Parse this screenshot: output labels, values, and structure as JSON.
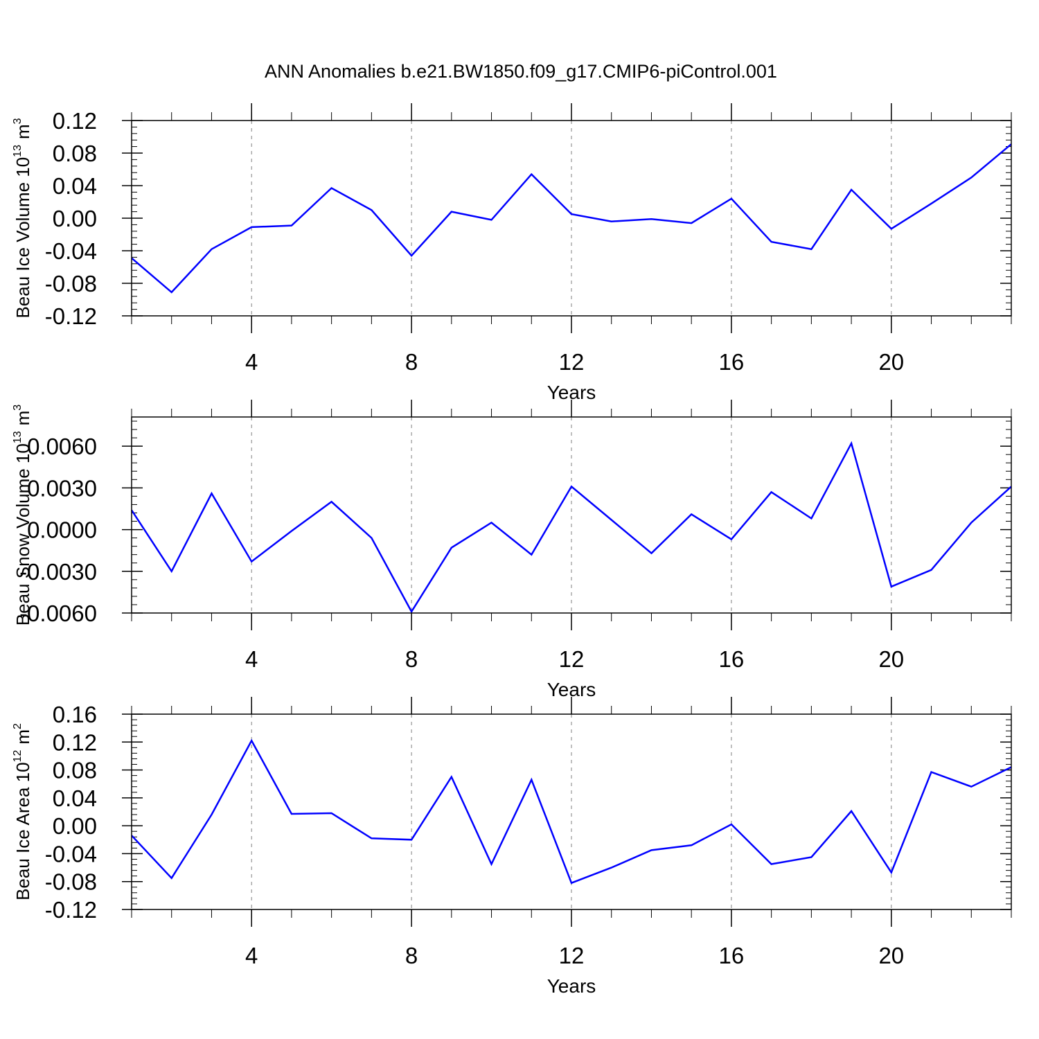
{
  "title": "ANN Anomalies b.e21.BW1850.f09_g17.CMIP6-piControl.001",
  "colors": {
    "line": "#0000ff",
    "axis": "#000000",
    "grid": "#7f7f7f",
    "background": "#ffffff"
  },
  "chart_data": [
    {
      "type": "line",
      "ylabel": {
        "text": "Beau Ice Volume 10",
        "exponent": "13",
        "unit": "m",
        "unit_exponent": "3"
      },
      "xlabel": "Years",
      "xlim": [
        1,
        23
      ],
      "ylim": [
        -0.12,
        0.12
      ],
      "xticks": [
        4,
        8,
        12,
        16,
        20
      ],
      "xtick_labels": [
        "4",
        "8",
        "12",
        "16",
        "20"
      ],
      "yticks": [
        -0.12,
        -0.08,
        -0.04,
        0.0,
        0.04,
        0.08,
        0.12
      ],
      "ytick_labels": [
        "-0.12",
        "-0.08",
        "-0.04",
        "0.00",
        "0.04",
        "0.08",
        "0.12"
      ],
      "vgrid": [
        4,
        8,
        12,
        16,
        20
      ],
      "series": [
        {
          "x": [
            1,
            2,
            3,
            4,
            5,
            6,
            7,
            8,
            9,
            10,
            11,
            12,
            13,
            14,
            15,
            16,
            17,
            18,
            19,
            20,
            21,
            22,
            23
          ],
          "values": [
            -0.049,
            -0.091,
            -0.038,
            -0.011,
            -0.009,
            0.037,
            0.01,
            -0.046,
            0.008,
            -0.002,
            0.054,
            0.005,
            -0.004,
            -0.001,
            -0.006,
            0.024,
            -0.029,
            -0.038,
            0.035,
            -0.013,
            0.018,
            0.05,
            0.091
          ]
        }
      ]
    },
    {
      "type": "line",
      "ylabel": {
        "text": "Beau Snow Volume 10",
        "exponent": "13",
        "unit": "m",
        "unit_exponent": "3"
      },
      "xlabel": "Years",
      "xlim": [
        1,
        23
      ],
      "ylim": [
        -0.006,
        0.0081
      ],
      "xticks": [
        4,
        8,
        12,
        16,
        20
      ],
      "xtick_labels": [
        "4",
        "8",
        "12",
        "16",
        "20"
      ],
      "yticks": [
        -0.006,
        -0.003,
        0.0,
        0.003,
        0.006
      ],
      "ytick_labels": [
        "-0.0060",
        "-0.0030",
        "0.0000",
        "0.0030",
        "0.0060"
      ],
      "vgrid": [
        4,
        8,
        12,
        16,
        20
      ],
      "series": [
        {
          "x": [
            1,
            2,
            3,
            4,
            5,
            6,
            7,
            8,
            9,
            10,
            11,
            12,
            13,
            14,
            15,
            16,
            17,
            18,
            19,
            20,
            21,
            22,
            23
          ],
          "values": [
            0.0014,
            -0.003,
            0.0026,
            -0.0023,
            -0.0001,
            0.002,
            -0.0006,
            -0.0059,
            -0.0013,
            0.0005,
            -0.0018,
            0.0031,
            0.0007,
            -0.0017,
            0.0011,
            -0.0007,
            0.0027,
            0.0008,
            0.0062,
            -0.0041,
            -0.0029,
            0.0005,
            0.0031
          ]
        }
      ]
    },
    {
      "type": "line",
      "ylabel": {
        "text": "Beau Ice Area 10",
        "exponent": "12",
        "unit": "m",
        "unit_exponent": "2"
      },
      "xlabel": "Years",
      "xlim": [
        1,
        23
      ],
      "ylim": [
        -0.12,
        0.16
      ],
      "xticks": [
        4,
        8,
        12,
        16,
        20
      ],
      "xtick_labels": [
        "4",
        "8",
        "12",
        "16",
        "20"
      ],
      "yticks": [
        -0.12,
        -0.08,
        -0.04,
        0.0,
        0.04,
        0.08,
        0.12,
        0.16
      ],
      "ytick_labels": [
        "-0.12",
        "-0.08",
        "-0.04",
        "0.00",
        "0.04",
        "0.08",
        "0.12",
        "0.16"
      ],
      "vgrid": [
        4,
        8,
        12,
        16,
        20
      ],
      "series": [
        {
          "x": [
            1,
            2,
            3,
            4,
            5,
            6,
            7,
            8,
            9,
            10,
            11,
            12,
            13,
            14,
            15,
            16,
            17,
            18,
            19,
            20,
            21,
            22,
            23
          ],
          "values": [
            -0.014,
            -0.075,
            0.016,
            0.122,
            0.017,
            0.018,
            -0.018,
            -0.02,
            0.07,
            -0.055,
            0.066,
            -0.082,
            -0.06,
            -0.035,
            -0.028,
            0.002,
            -0.055,
            -0.045,
            0.021,
            -0.067,
            0.077,
            0.056,
            0.084
          ]
        }
      ]
    }
  ]
}
